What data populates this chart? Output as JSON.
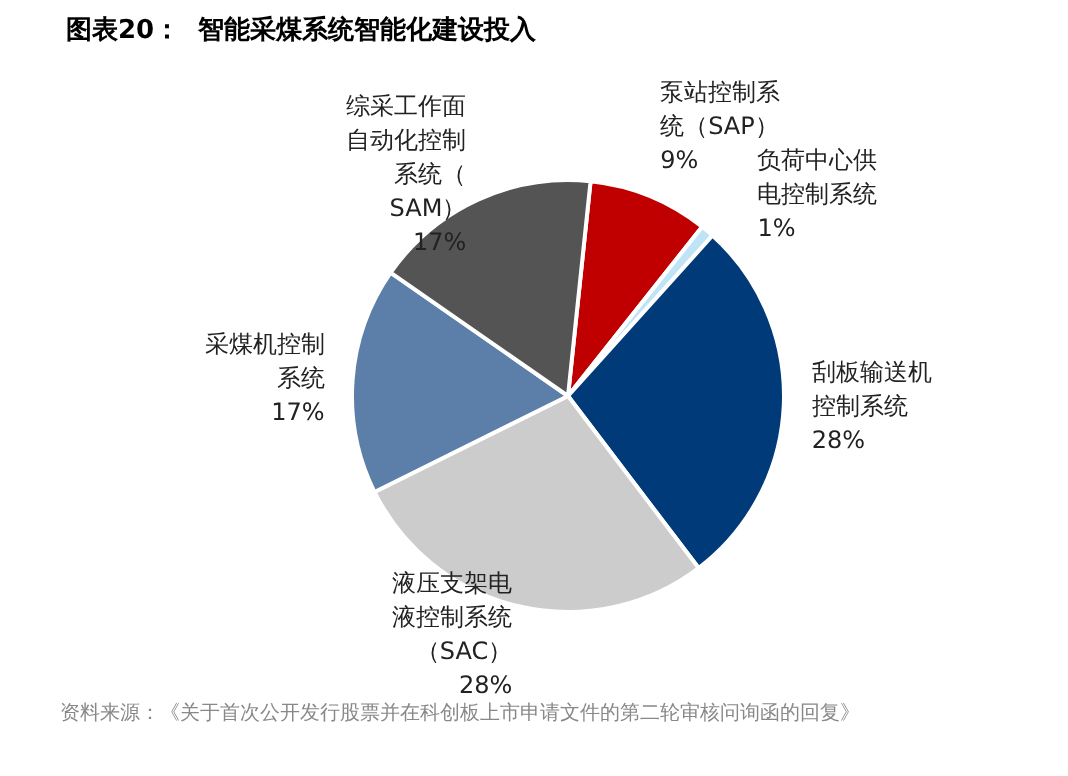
{
  "chart_data": {
    "type": "pie",
    "title": "图表20：  智能采煤系统智能化建设投入",
    "categories": [
      "泵站控制系统（SAP）",
      "负荷中心供电控制系统",
      "刮板输送机控制系统",
      "液压支架电液控制系统（SAC）",
      "采煤机控制系统",
      "综采工作面自动化控制系统（SAM）"
    ],
    "values": [
      9,
      1,
      28,
      28,
      17,
      17
    ],
    "colors": [
      "#c00000",
      "#bfe4f6",
      "#003a78",
      "#cccccc",
      "#5b7fa8",
      "#545454"
    ],
    "value_labels": [
      "9%",
      "1%",
      "28%",
      "28%",
      "17%",
      "17%"
    ],
    "annotations": [
      "资料来源：《关于首次公开发行股票并在科创板上市申请文件的第二轮审核问询函的回复》"
    ]
  }
}
